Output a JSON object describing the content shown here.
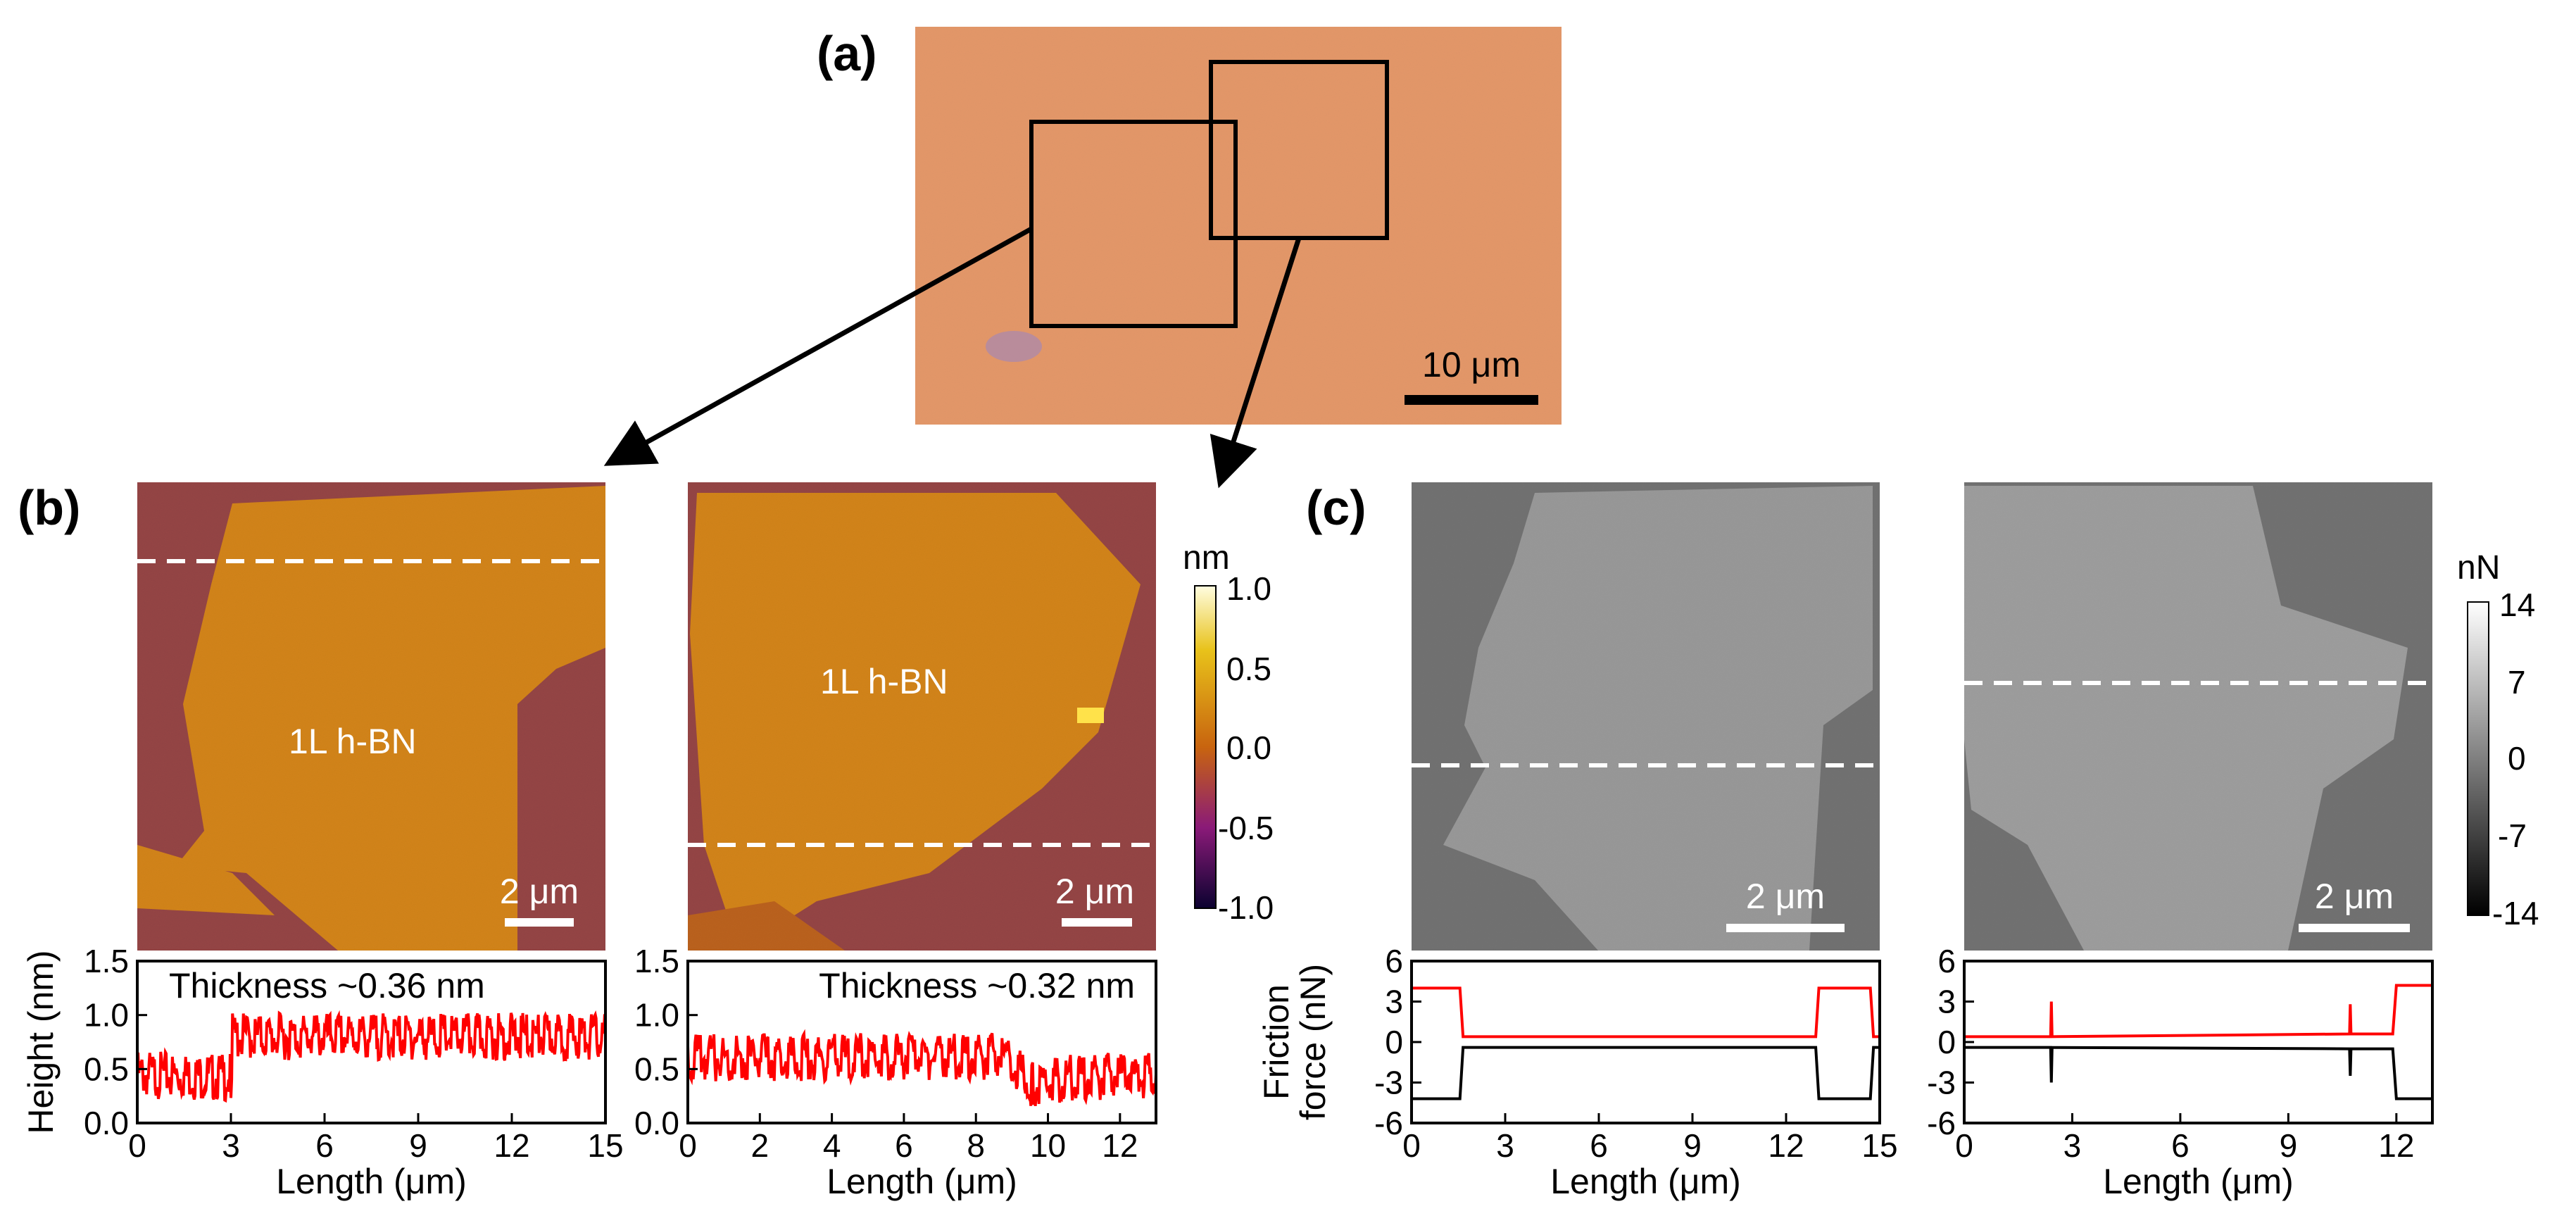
{
  "panels": {
    "a": {
      "label": "(a)",
      "scale_bar": "10 μm"
    },
    "b": {
      "label": "(b)"
    },
    "c": {
      "label": "(c)"
    }
  },
  "afm_height": {
    "left": {
      "annotation": "1L h-BN",
      "scale_bar": "2 μm"
    },
    "right": {
      "annotation": "1L h-BN",
      "scale_bar": "2 μm"
    },
    "colorbar": {
      "unit": "nm",
      "ticks": [
        "1.0",
        "0.5",
        "0.0",
        "-0.5",
        "-1.0"
      ]
    }
  },
  "friction_maps": {
    "left": {
      "scale_bar": "2 μm"
    },
    "right": {
      "scale_bar": "2 μm"
    },
    "colorbar": {
      "unit": "nN",
      "ticks": [
        "14",
        "7",
        "0",
        "-7",
        "-14"
      ]
    }
  },
  "chart_data": [
    {
      "id": "height-profile-left",
      "type": "line",
      "xlabel": "Length (μm)",
      "ylabel": "Height (nm)",
      "xlim": [
        0,
        15
      ],
      "ylim": [
        0,
        1.5
      ],
      "xticks": [
        "0",
        "3",
        "6",
        "9",
        "12",
        "15"
      ],
      "yticks": [
        "0.0",
        "0.5",
        "1.0",
        "1.5"
      ],
      "annotation": "Thickness ~0.36 nm",
      "series": [
        {
          "name": "height",
          "color": "#ff0000",
          "x": [
            0,
            3.0,
            3.05,
            15
          ],
          "y": [
            0.45,
            0.42,
            0.8,
            0.8
          ]
        }
      ]
    },
    {
      "id": "height-profile-right",
      "type": "line",
      "xlabel": "Length (μm)",
      "ylabel": "",
      "xlim": [
        0,
        13
      ],
      "ylim": [
        0,
        1.5
      ],
      "xticks": [
        "0",
        "2",
        "4",
        "6",
        "8",
        "10",
        "12"
      ],
      "yticks": [
        "0.0",
        "0.5",
        "1.0",
        "1.5"
      ],
      "annotation": "Thickness ~0.32 nm",
      "series": [
        {
          "name": "height",
          "color": "#ff0000",
          "x": [
            0,
            8.8,
            9.6,
            10.5,
            13
          ],
          "y": [
            0.6,
            0.62,
            0.35,
            0.42,
            0.45
          ]
        }
      ]
    },
    {
      "id": "friction-profile-left",
      "type": "line",
      "xlabel": "Length (μm)",
      "ylabel": "Friction force (nN)",
      "ylabel_lines": [
        "Friction",
        "force (nN)"
      ],
      "xlim": [
        0,
        15
      ],
      "ylim": [
        -6,
        6
      ],
      "xticks": [
        "0",
        "3",
        "6",
        "9",
        "12",
        "15"
      ],
      "yticks": [
        "-6",
        "-3",
        "0",
        "3",
        "6"
      ],
      "series": [
        {
          "name": "trace",
          "color": "#ff0000",
          "x": [
            0,
            1.55,
            1.65,
            12.95,
            13.05,
            14.7,
            14.8,
            15
          ],
          "y": [
            4.0,
            4.0,
            0.4,
            0.4,
            4.0,
            4.0,
            0.4,
            0.4
          ]
        },
        {
          "name": "retrace",
          "color": "#000000",
          "x": [
            0,
            1.55,
            1.65,
            12.95,
            13.05,
            14.7,
            14.8,
            15
          ],
          "y": [
            -4.2,
            -4.2,
            -0.4,
            -0.4,
            -4.2,
            -4.2,
            -0.4,
            -0.4
          ]
        }
      ]
    },
    {
      "id": "friction-profile-right",
      "type": "line",
      "xlabel": "Length (μm)",
      "ylabel": "",
      "xlim": [
        0,
        13
      ],
      "ylim": [
        -6,
        6
      ],
      "xticks": [
        "0",
        "3",
        "6",
        "9",
        "12"
      ],
      "yticks": [
        "-6",
        "-3",
        "0",
        "3",
        "6"
      ],
      "series": [
        {
          "name": "trace",
          "color": "#ff0000",
          "x": [
            0,
            2.4,
            2.42,
            2.44,
            10.7,
            10.72,
            10.74,
            11.9,
            12.0,
            13
          ],
          "y": [
            0.4,
            0.4,
            3.0,
            0.4,
            0.6,
            2.8,
            0.6,
            0.6,
            4.2,
            4.2
          ]
        },
        {
          "name": "retrace",
          "color": "#000000",
          "x": [
            0,
            2.4,
            2.42,
            2.44,
            10.7,
            10.72,
            10.74,
            11.9,
            12.0,
            13
          ],
          "y": [
            -0.4,
            -0.4,
            -3.0,
            -0.4,
            -0.5,
            -2.5,
            -0.5,
            -0.5,
            -4.2,
            -4.2
          ]
        }
      ]
    }
  ]
}
